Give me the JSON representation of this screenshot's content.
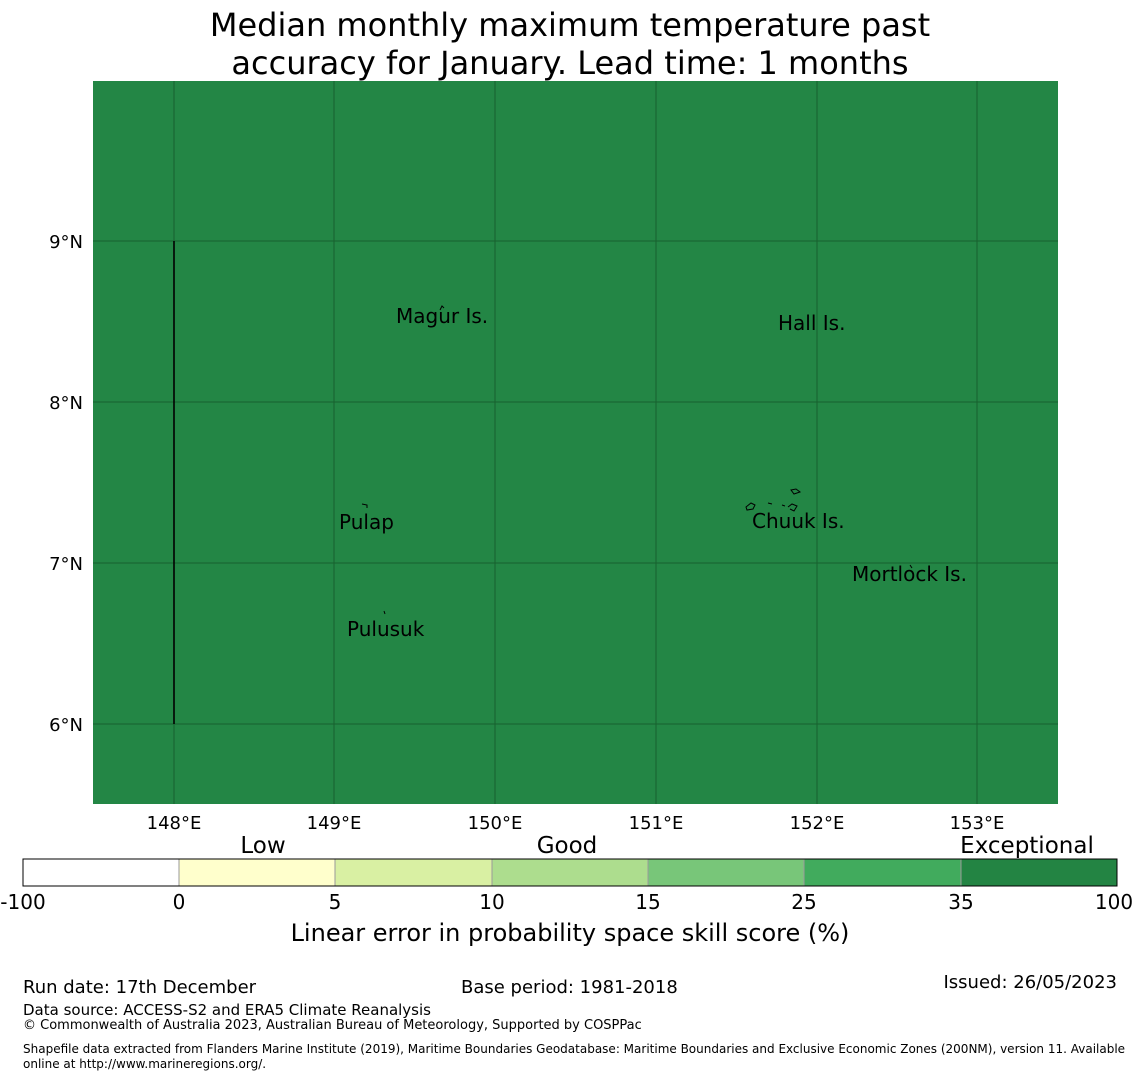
{
  "title_line1": "Median monthly maximum temperature past",
  "title_line2": "accuracy for January. Lead time: 1 months",
  "map": {
    "fill_color": "#238645",
    "grid_color": "#17602f",
    "lat_labels": [
      "9°N",
      "8°N",
      "7°N",
      "6°N"
    ],
    "lon_labels": [
      "148°E",
      "149°E",
      "150°E",
      "151°E",
      "152°E",
      "153°E"
    ],
    "places": [
      "Magur Is.",
      "Hall Is.",
      "Pulap",
      "Chuuk Is.",
      "Mortlock Is.",
      "Pulusuk"
    ]
  },
  "legend": {
    "category_labels": [
      "Low",
      "Good",
      "Exceptional"
    ],
    "bins": [
      {
        "color": "#ffffff"
      },
      {
        "color": "#ffffcc"
      },
      {
        "color": "#d9f0a3"
      },
      {
        "color": "#addd8e"
      },
      {
        "color": "#78c679"
      },
      {
        "color": "#41ab5d"
      },
      {
        "color": "#238443"
      }
    ],
    "tick_labels": [
      "-100",
      "0",
      "5",
      "10",
      "15",
      "25",
      "35",
      "100"
    ],
    "axis_label": "Linear error in probability space skill score (%)"
  },
  "footer": {
    "run_date": "Run date: 17th December",
    "base_period": "Base period: 1981-2018",
    "issued": "Issued: 26/05/2023",
    "data_source": "Data source: ACCESS-S2 and ERA5 Climate Reanalysis",
    "copyright": "© Commonwealth of Australia 2023, Australian Bureau of Meteorology, Supported by COSPPac",
    "shapefile_line1": "Shapefile data extracted from Flanders Marine Institute (2019), Maritime Boundaries Geodatabase: Maritime Boundaries and Exclusive Economic Zones (200NM), version 11. Available",
    "shapefile_line2": "online at http://www.marineregions.org/."
  }
}
